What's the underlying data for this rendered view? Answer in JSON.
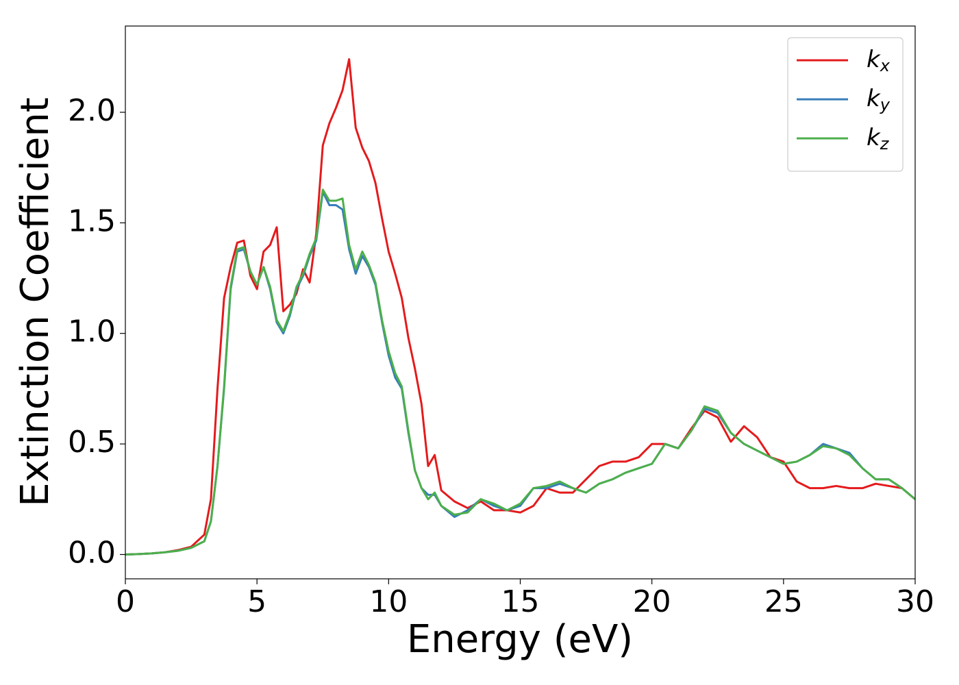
{
  "chart_data": {
    "type": "line",
    "x_label": "Energy (eV)",
    "y_label": "Extinction Coefficient",
    "x": [
      0,
      0.5,
      1,
      1.5,
      2,
      2.5,
      3,
      3.25,
      3.5,
      3.75,
      4,
      4.25,
      4.5,
      4.75,
      5,
      5.25,
      5.5,
      5.75,
      6,
      6.25,
      6.5,
      6.75,
      7,
      7.25,
      7.5,
      7.75,
      8,
      8.25,
      8.5,
      8.75,
      9,
      9.25,
      9.5,
      9.75,
      10,
      10.25,
      10.5,
      10.75,
      11,
      11.25,
      11.5,
      11.75,
      12,
      12.5,
      13,
      13.5,
      14,
      14.5,
      15,
      15.5,
      16,
      16.5,
      17,
      17.5,
      18,
      18.5,
      19,
      19.5,
      20,
      20.5,
      21,
      21.5,
      22,
      22.5,
      23,
      23.5,
      24,
      24.5,
      25,
      25.5,
      26,
      26.5,
      27,
      27.5,
      28,
      28.5,
      29,
      29.5,
      30
    ],
    "series": [
      {
        "name": "kx",
        "color": "#e41a1c",
        "values": [
          0,
          0.002,
          0.005,
          0.01,
          0.02,
          0.035,
          0.09,
          0.25,
          0.75,
          1.16,
          1.3,
          1.41,
          1.42,
          1.26,
          1.2,
          1.37,
          1.4,
          1.48,
          1.1,
          1.13,
          1.18,
          1.29,
          1.23,
          1.45,
          1.85,
          1.95,
          2.02,
          2.1,
          2.24,
          1.93,
          1.84,
          1.78,
          1.68,
          1.52,
          1.37,
          1.27,
          1.16,
          0.98,
          0.84,
          0.68,
          0.4,
          0.45,
          0.29,
          0.24,
          0.21,
          0.24,
          0.2,
          0.2,
          0.19,
          0.22,
          0.3,
          0.28,
          0.28,
          0.34,
          0.4,
          0.42,
          0.42,
          0.44,
          0.5,
          0.5,
          0.48,
          0.57,
          0.65,
          0.62,
          0.51,
          0.58,
          0.53,
          0.44,
          0.42,
          0.33,
          0.3,
          0.3,
          0.31,
          0.3,
          0.3,
          0.32,
          0.31,
          0.3,
          0.25
        ]
      },
      {
        "name": "ky",
        "color": "#377eb8",
        "values": [
          0,
          0.002,
          0.005,
          0.01,
          0.017,
          0.03,
          0.06,
          0.15,
          0.4,
          0.75,
          1.2,
          1.37,
          1.38,
          1.28,
          1.22,
          1.3,
          1.2,
          1.05,
          1.0,
          1.08,
          1.2,
          1.26,
          1.35,
          1.42,
          1.64,
          1.58,
          1.58,
          1.56,
          1.38,
          1.27,
          1.35,
          1.3,
          1.22,
          1.05,
          0.9,
          0.8,
          0.75,
          0.55,
          0.38,
          0.3,
          0.27,
          0.27,
          0.22,
          0.17,
          0.2,
          0.25,
          0.22,
          0.2,
          0.22,
          0.3,
          0.3,
          0.32,
          0.3,
          0.28,
          0.32,
          0.34,
          0.37,
          0.39,
          0.41,
          0.5,
          0.48,
          0.56,
          0.66,
          0.64,
          0.55,
          0.5,
          0.47,
          0.44,
          0.41,
          0.42,
          0.45,
          0.5,
          0.48,
          0.46,
          0.39,
          0.34,
          0.34,
          0.3,
          0.25
        ]
      },
      {
        "name": "kz",
        "color": "#4daf4a",
        "values": [
          0,
          0.002,
          0.005,
          0.01,
          0.017,
          0.03,
          0.06,
          0.15,
          0.4,
          0.76,
          1.21,
          1.38,
          1.39,
          1.28,
          1.22,
          1.3,
          1.21,
          1.06,
          1.01,
          1.09,
          1.21,
          1.27,
          1.36,
          1.43,
          1.65,
          1.6,
          1.6,
          1.61,
          1.4,
          1.29,
          1.37,
          1.31,
          1.23,
          1.06,
          0.92,
          0.82,
          0.76,
          0.56,
          0.38,
          0.3,
          0.25,
          0.28,
          0.22,
          0.18,
          0.19,
          0.25,
          0.23,
          0.2,
          0.23,
          0.3,
          0.31,
          0.33,
          0.3,
          0.28,
          0.32,
          0.34,
          0.37,
          0.39,
          0.41,
          0.5,
          0.48,
          0.56,
          0.67,
          0.65,
          0.55,
          0.5,
          0.47,
          0.44,
          0.41,
          0.42,
          0.45,
          0.49,
          0.48,
          0.45,
          0.39,
          0.34,
          0.34,
          0.3,
          0.25
        ]
      }
    ],
    "xlim": [
      0,
      30
    ],
    "xticks": [
      0,
      5,
      10,
      15,
      20,
      25,
      30
    ],
    "ylim": [
      -0.11,
      2.39
    ],
    "yticks": [
      {
        "value": 0,
        "label": "0.0"
      },
      0.5,
      {
        "value": 1,
        "label": "1.0"
      },
      1.5,
      {
        "value": 2,
        "label": "2.0"
      }
    ],
    "grid": false,
    "legend": "upper right"
  }
}
